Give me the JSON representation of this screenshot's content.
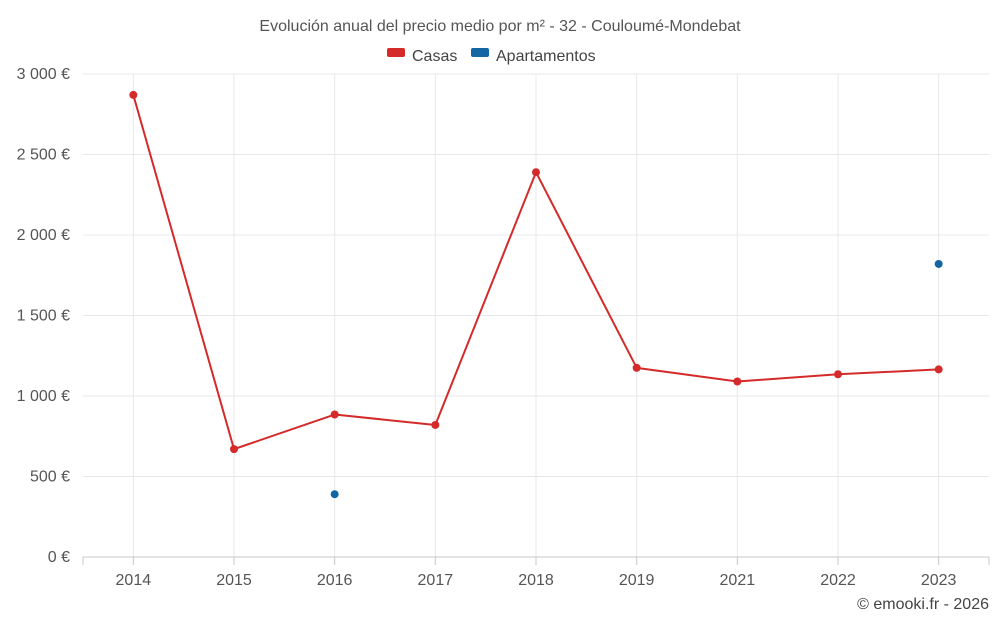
{
  "chart_data": {
    "type": "line",
    "title": "Evolución anual del precio medio por m² - 32 - Couloumé-Mondebat",
    "categories": [
      "2014",
      "2015",
      "2016",
      "2017",
      "2018",
      "2019",
      "2021",
      "2022",
      "2023"
    ],
    "series": [
      {
        "name": "Casas",
        "color": "#d42a2a",
        "values": [
          2870,
          670,
          885,
          820,
          2390,
          1175,
          1090,
          1135,
          1165
        ]
      },
      {
        "name": "Apartamentos",
        "color": "#1266a3",
        "values": [
          null,
          null,
          390,
          null,
          null,
          null,
          null,
          null,
          1820
        ]
      }
    ],
    "ylim": [
      0,
      3000
    ],
    "yticks": [
      0,
      500,
      1000,
      1500,
      2000,
      2500,
      3000
    ],
    "ytick_labels": [
      "0 €",
      "500 €",
      "1 000 €",
      "1 500 €",
      "2 000 €",
      "2 500 €",
      "3 000 €"
    ],
    "xlabel": "",
    "ylabel": "",
    "grid": true,
    "legend_position": "top-center"
  },
  "footer": {
    "credit": "© emooki.fr - 2026"
  }
}
